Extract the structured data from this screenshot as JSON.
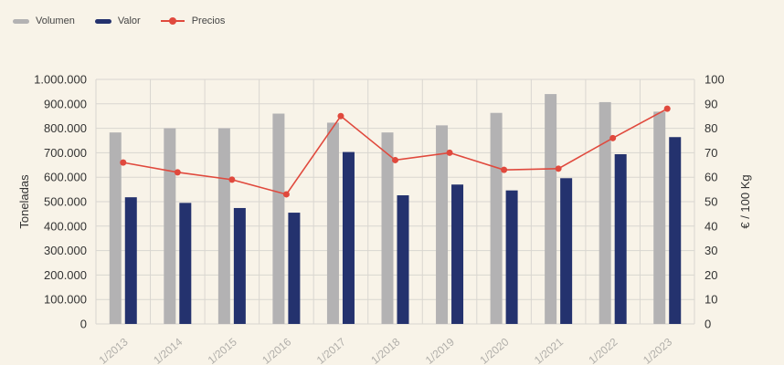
{
  "chart_data": {
    "type": "bar",
    "categories": [
      "1/2013",
      "1/2014",
      "1/2015",
      "1/2016",
      "1/2017",
      "1/2018",
      "1/2019",
      "1/2020",
      "1/2021",
      "1/2022",
      "1/2023"
    ],
    "series": [
      {
        "name": "Volumen",
        "type": "bar",
        "axis": "left",
        "color": "#b3b2b3",
        "values": [
          783000,
          800000,
          800000,
          860000,
          823000,
          783000,
          812000,
          863000,
          940000,
          907000,
          868000
        ]
      },
      {
        "name": "Valor",
        "type": "bar",
        "axis": "left",
        "color": "#24326e",
        "values": [
          518000,
          495000,
          474000,
          455000,
          703000,
          526000,
          570000,
          546000,
          596000,
          694000,
          764000
        ]
      },
      {
        "name": "Precios",
        "type": "line",
        "axis": "right",
        "color": "#e0493d",
        "values": [
          66,
          62,
          59,
          53,
          85,
          67,
          70,
          63,
          63.5,
          76,
          88
        ]
      }
    ],
    "ylabel": "Toneladas",
    "y2label": "€ / 100 Kg",
    "ylim": [
      0,
      1000000
    ],
    "y2lim": [
      0,
      100
    ],
    "yticks": [
      "0",
      "100.000",
      "200.000",
      "300.000",
      "400.000",
      "500.000",
      "600.000",
      "700.000",
      "800.000",
      "900.000",
      "1.000.000"
    ],
    "y2ticks": [
      "0",
      "10",
      "20",
      "30",
      "40",
      "50",
      "60",
      "70",
      "80",
      "90",
      "100"
    ],
    "grid": true,
    "legend_position": "top-left"
  }
}
